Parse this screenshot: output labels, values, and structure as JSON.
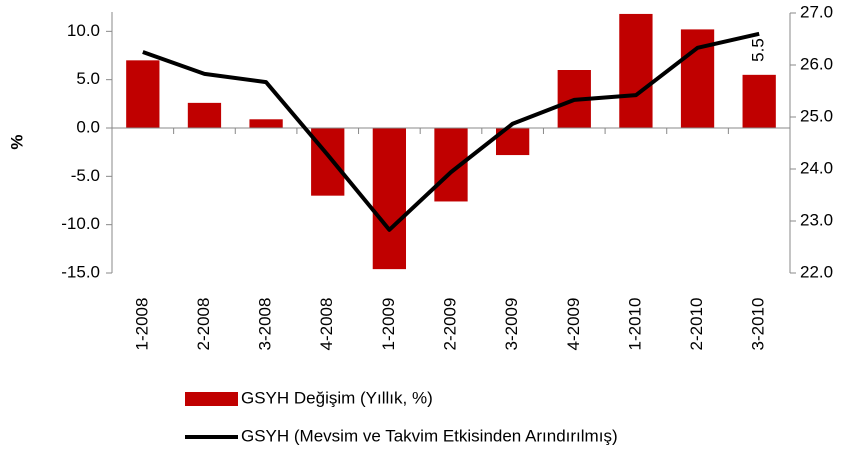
{
  "chart_data": {
    "type": "bar_line",
    "ylabel": "%",
    "categories": [
      "1-2008",
      "2-2008",
      "3-2008",
      "4-2008",
      "1-2009",
      "2-2009",
      "3-2009",
      "4-2009",
      "1-2010",
      "2-2010",
      "3-2010"
    ],
    "series": [
      {
        "name": "GSYH Değişim (Yıllık, %)",
        "type": "bar",
        "color": "#c00000",
        "values": [
          7.0,
          2.6,
          0.9,
          -7.0,
          -14.6,
          -7.6,
          -2.8,
          6.0,
          11.8,
          10.2,
          5.5
        ]
      },
      {
        "name": "GSYH (Mevsim ve Takvim Etkisinden Arındırılmış)",
        "type": "line",
        "axis": "y2",
        "color": "#000000",
        "values": [
          26.25,
          25.83,
          25.67,
          24.27,
          22.83,
          23.94,
          24.87,
          25.33,
          25.42,
          26.33,
          26.6
        ]
      }
    ],
    "ylim": [
      -15,
      12
    ],
    "yticks": [
      {
        "value": -15,
        "label": "-15.0"
      },
      {
        "value": -10,
        "label": "-10.0"
      },
      {
        "value": -5,
        "label": "-5.0"
      },
      {
        "value": 0,
        "label": "0.0"
      },
      {
        "value": 5,
        "label": "5.0"
      },
      {
        "value": 10,
        "label": "10.0"
      }
    ],
    "y2lim": [
      22,
      27
    ],
    "y2ticks": [
      {
        "value": 22,
        "label": "22.0"
      },
      {
        "value": 23,
        "label": "23.0"
      },
      {
        "value": 24,
        "label": "24.0"
      },
      {
        "value": 25,
        "label": "25.0"
      },
      {
        "value": 26,
        "label": "26.0"
      },
      {
        "value": 27,
        "label": "27.0"
      }
    ]
  }
}
